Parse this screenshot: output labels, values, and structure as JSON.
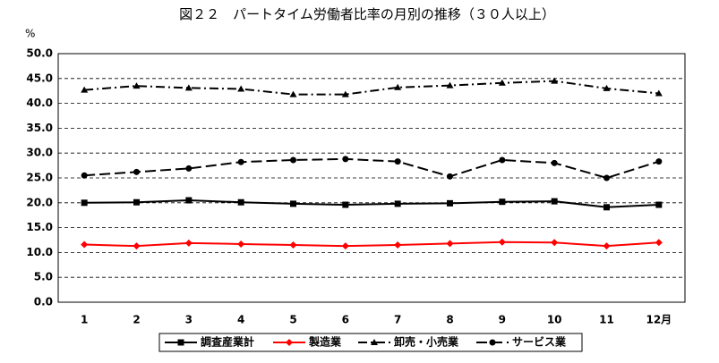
{
  "chart_data": {
    "type": "line",
    "title": "図２２　パートタイム労働者比率の月別の推移（３０人以上）",
    "ylabel": "%",
    "categories": [
      "1",
      "2",
      "3",
      "4",
      "5",
      "6",
      "7",
      "8",
      "9",
      "10",
      "11",
      "12月"
    ],
    "ylim": [
      0,
      50
    ],
    "yticks": [
      {
        "value": 0,
        "label": "0.0"
      },
      {
        "value": 5,
        "label": "5.0"
      },
      {
        "value": 10,
        "label": "10.0"
      },
      {
        "value": 15,
        "label": "15.0"
      },
      {
        "value": 20,
        "label": "20.0"
      },
      {
        "value": 25,
        "label": "25.0"
      },
      {
        "value": 30,
        "label": "30.0"
      },
      {
        "value": 35,
        "label": "35.0"
      },
      {
        "value": 40,
        "label": "40.0"
      },
      {
        "value": 45,
        "label": "45.0"
      },
      {
        "value": 50,
        "label": "50.0"
      }
    ],
    "grid": true,
    "legend": "bottom",
    "series": [
      {
        "name": "調査産業計",
        "color": "#000000",
        "marker": "square",
        "dash": "solid",
        "values": [
          20.0,
          20.1,
          20.5,
          20.1,
          19.8,
          19.6,
          19.8,
          19.9,
          20.2,
          20.3,
          19.1,
          19.6
        ]
      },
      {
        "name": "製造業",
        "color": "#ff0000",
        "marker": "diamond",
        "dash": "solid",
        "values": [
          11.6,
          11.3,
          11.9,
          11.7,
          11.5,
          11.3,
          11.5,
          11.8,
          12.1,
          12.0,
          11.3,
          12.0
        ]
      },
      {
        "name": "卸売・小売業",
        "color": "#000000",
        "marker": "triangle",
        "dash": "dashdot",
        "values": [
          42.7,
          43.5,
          43.1,
          42.9,
          41.8,
          41.8,
          43.2,
          43.6,
          44.1,
          44.5,
          43.0,
          42.0
        ]
      },
      {
        "name": "サービス業",
        "color": "#000000",
        "marker": "circle",
        "dash": "dash",
        "values": [
          25.5,
          26.2,
          26.9,
          28.2,
          28.6,
          28.8,
          28.3,
          25.3,
          28.6,
          28.0,
          25.0,
          28.3
        ]
      }
    ]
  }
}
